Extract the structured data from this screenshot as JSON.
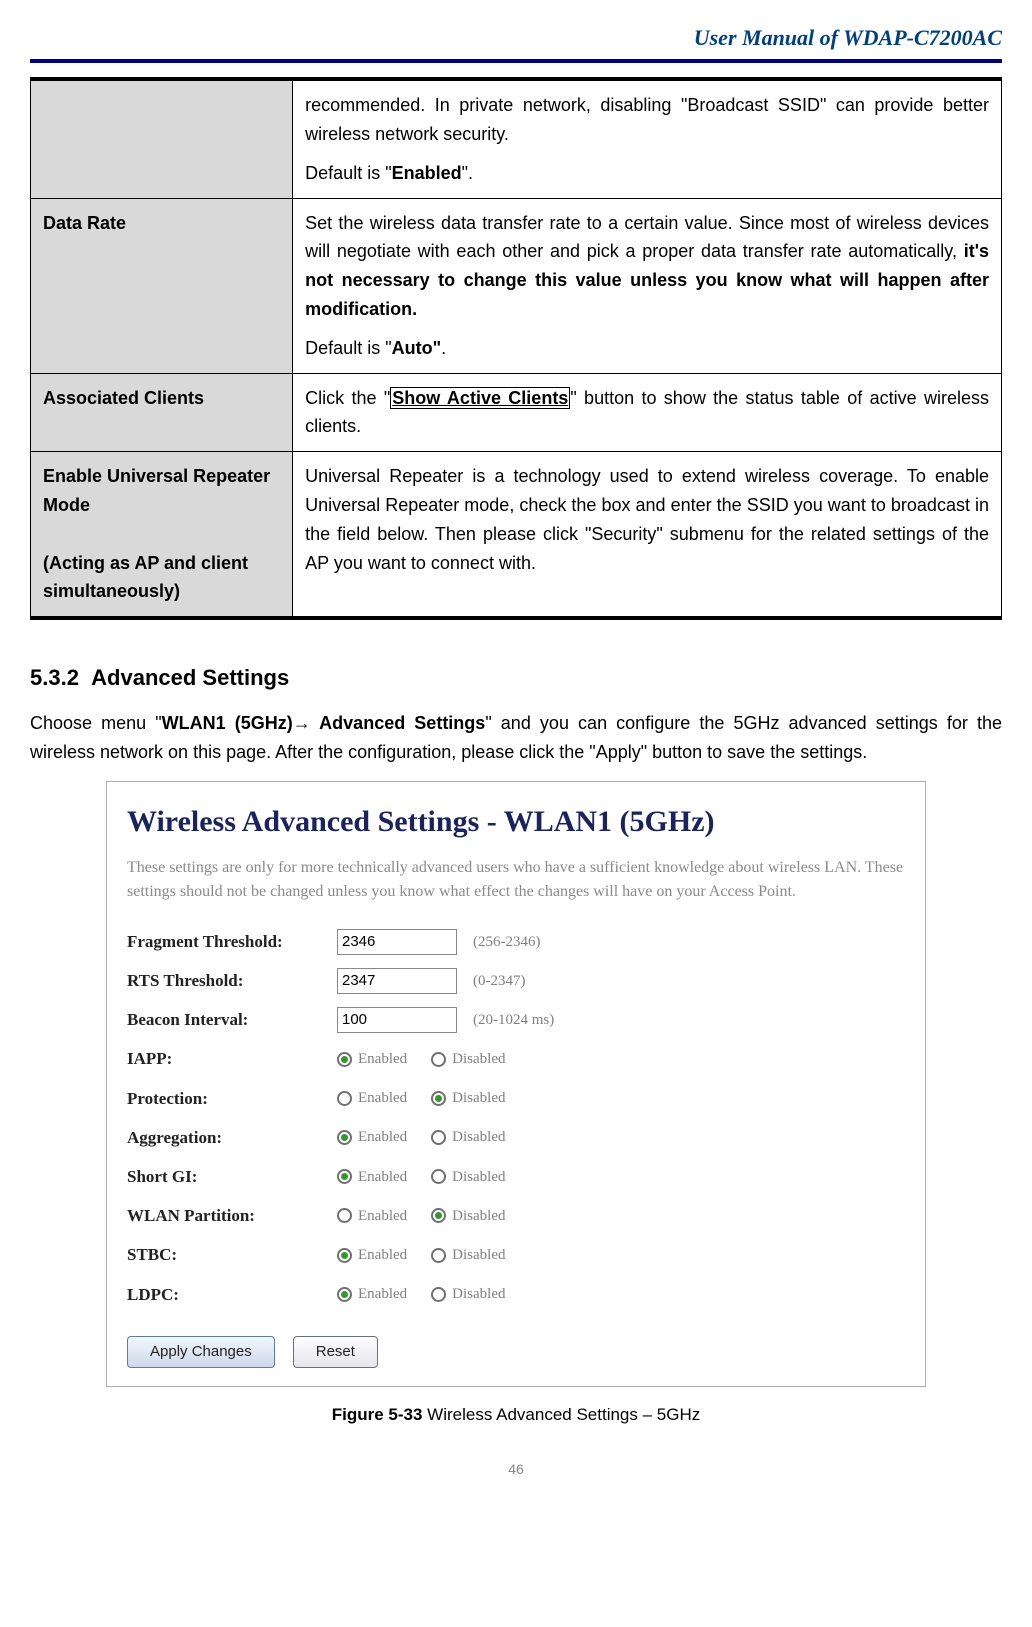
{
  "header": {
    "title": "User Manual of WDAP-C7200AC"
  },
  "desc_table": {
    "rows": [
      {
        "label": "",
        "html": "<p class='jtext'>recommended. In private network, disabling \"Broadcast SSID\" can provide better wireless network security.</p><p>Default is \"<b>Enabled</b>\".</p>"
      },
      {
        "label": "Data Rate",
        "html": "<p class='jtext'>Set the wireless data transfer rate to a certain value. Since most of wireless devices will negotiate with each other and pick a proper data transfer rate automatically, <b>it's not necessary to change this value unless you know what will happen after modification.</b></p><p>Default is \"<b>Auto\"</b>.</p>"
      },
      {
        "label": "Associated Clients",
        "html": "<p class='jtext'>Click the \"<span class='boxed'><b><u>Show Active Clients</u></b></span>\" button to show the status table of active wireless clients.</p>"
      },
      {
        "label": "Enable Universal Repeater Mode<br><br>(Acting as AP and client simultaneously)",
        "html": "<p class='jtext'>Universal Repeater is a technology used to extend wireless coverage. To enable Universal Repeater mode, check the box and enter the SSID you want to broadcast in the field below. Then please click \"Security\" submenu for the related settings of the AP you want to connect with.</p>"
      }
    ]
  },
  "section": {
    "number": "5.3.2",
    "title": "Advanced Settings",
    "body_html": "Choose menu \"<b>WLAN1 (5GHz)→ Advanced Settings</b>\" and you can configure the 5GHz advanced settings for the wireless network on this page. After the configuration, please click the \"Apply\" button to save the settings."
  },
  "screenshot": {
    "title": "Wireless Advanced Settings - WLAN1 (5GHz)",
    "note": "These settings are only for more technically advanced users who have a sufficient knowledge about wireless LAN. These settings should not be changed unless you know what effect the changes will have on your Access Point.",
    "text_fields": [
      {
        "label": "Fragment Threshold:",
        "value": "2346",
        "range": "(256-2346)"
      },
      {
        "label": "RTS Threshold:",
        "value": "2347",
        "range": "(0-2347)"
      },
      {
        "label": "Beacon Interval:",
        "value": "100",
        "range": "(20-1024 ms)"
      }
    ],
    "radio_fields": [
      {
        "label": "IAPP:",
        "selected": "Enabled"
      },
      {
        "label": "Protection:",
        "selected": "Disabled"
      },
      {
        "label": "Aggregation:",
        "selected": "Enabled"
      },
      {
        "label": "Short GI:",
        "selected": "Enabled"
      },
      {
        "label": "WLAN Partition:",
        "selected": "Disabled"
      },
      {
        "label": "STBC:",
        "selected": "Enabled"
      },
      {
        "label": "LDPC:",
        "selected": "Enabled"
      }
    ],
    "option_enabled": "Enabled",
    "option_disabled": "Disabled",
    "buttons": {
      "apply": "Apply Changes",
      "reset": "Reset"
    }
  },
  "caption": {
    "fig": "Figure 5-33",
    "text": " Wireless Advanced Settings – 5GHz"
  },
  "page_number": "46"
}
